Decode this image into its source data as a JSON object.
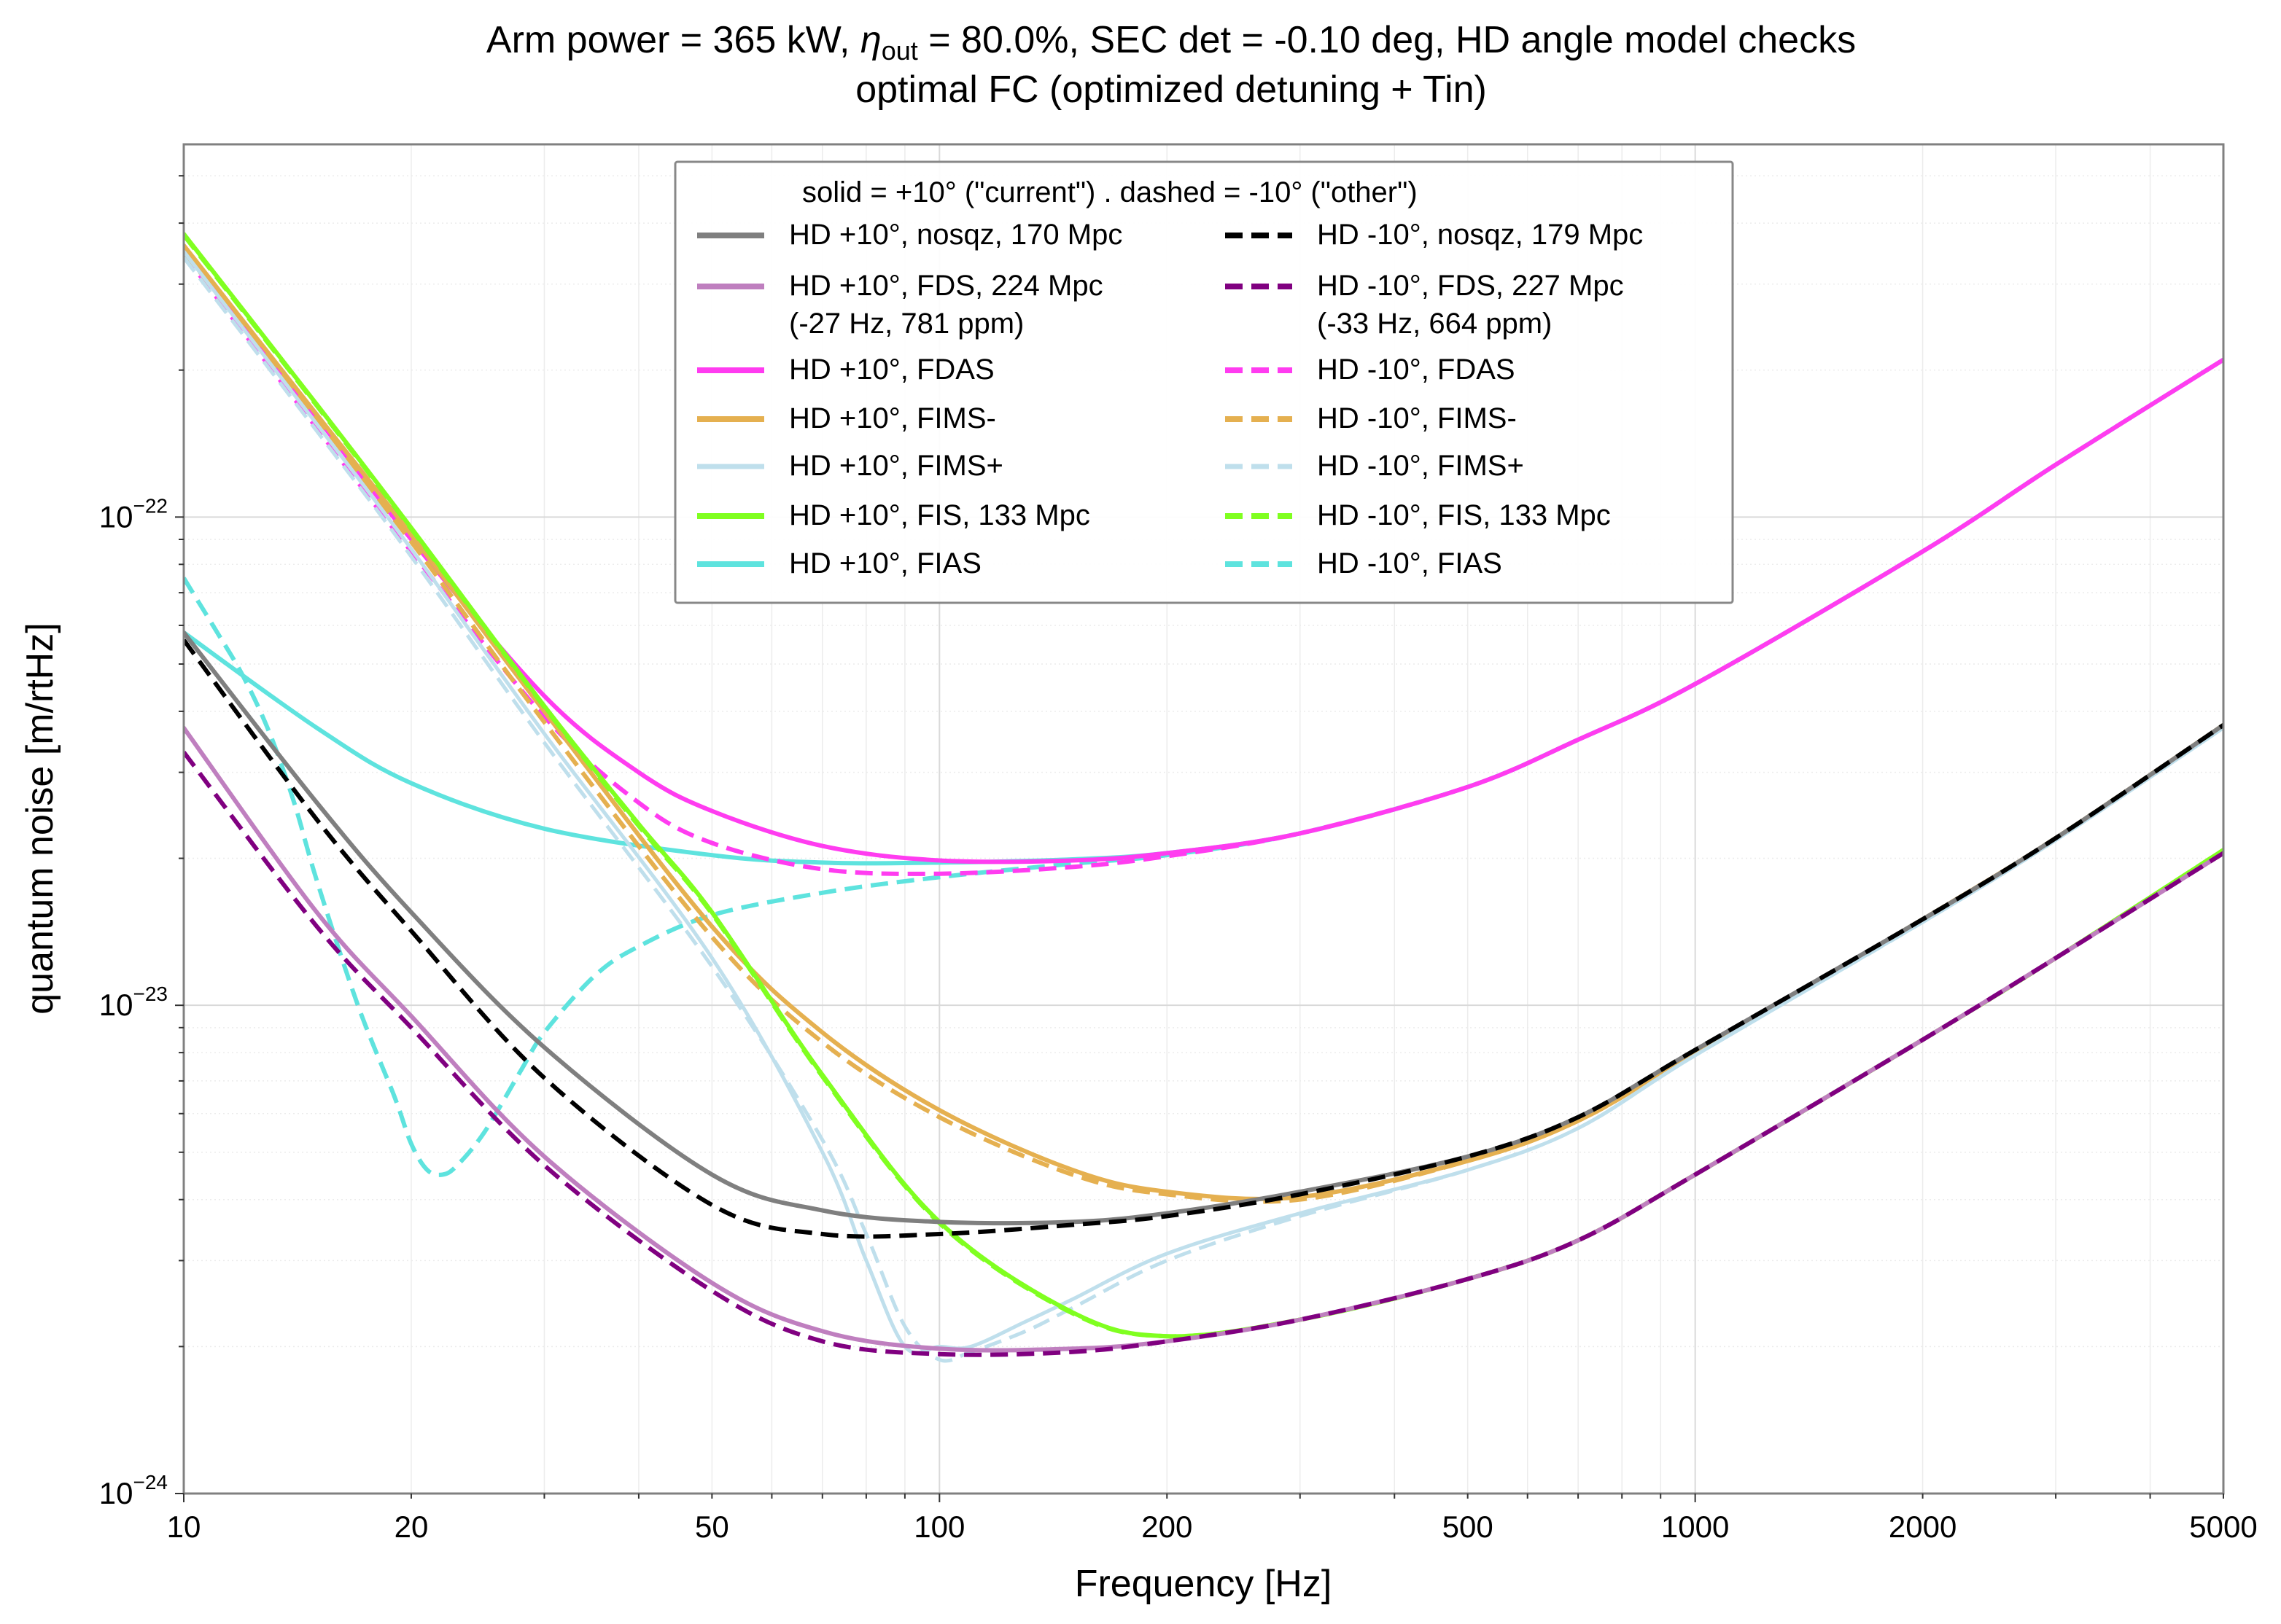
{
  "chart_data": {
    "type": "line",
    "title_line1_a": "Arm power = 365 kW, ",
    "title_eta": "η",
    "title_eta_sub": "out",
    "title_line1_b": " = 80.0%, SEC det = -0.10 deg, HD angle model checks",
    "title_line2": "optimal FC (optimized detuning + Tin)",
    "xlabel": "Frequency [Hz]",
    "ylabel": "quantum noise [m/rtHz]",
    "xscale": "log",
    "yscale": "log",
    "xlim": [
      10,
      5000
    ],
    "ylim": [
      1e-24,
      5.8e-22
    ],
    "grid": true,
    "x_ticks": [
      {
        "v": 10,
        "label": "10"
      },
      {
        "v": 20,
        "label": "20"
      },
      {
        "v": 50,
        "label": "50"
      },
      {
        "v": 100,
        "label": "100"
      },
      {
        "v": 200,
        "label": "200"
      },
      {
        "v": 500,
        "label": "500"
      },
      {
        "v": 1000,
        "label": "1000"
      },
      {
        "v": 2000,
        "label": "2000"
      },
      {
        "v": 5000,
        "label": "5000"
      }
    ],
    "y_ticks": [
      {
        "v": 1e-22,
        "base": "10",
        "exp": "−22"
      },
      {
        "v": 1e-23,
        "base": "10",
        "exp": "−23"
      },
      {
        "v": 1e-24,
        "base": "10",
        "exp": "−24"
      }
    ],
    "legend": {
      "placement": "upper-center",
      "header": "solid = +10° (\"current\") . dashed = -10° (\"other\")",
      "columns": 2
    },
    "series": [
      {
        "name": "HD +10°, nosqz, 170 Mpc",
        "color": "#7f7f7f",
        "dash": false,
        "width": 6,
        "x": [
          10,
          15,
          20,
          30,
          50,
          70,
          100,
          150,
          200,
          300,
          500,
          700,
          1000,
          2000,
          3000,
          5000
        ],
        "y": [
          5.8e-23,
          2.6e-23,
          1.55e-23,
          8.2e-24,
          4.5e-24,
          3.8e-24,
          3.6e-24,
          3.6e-24,
          3.75e-24,
          4.15e-24,
          4.9e-24,
          5.9e-24,
          8.1e-24,
          1.5e-23,
          2.2e-23,
          3.75e-23
        ]
      },
      {
        "name": "HD -10°, nosqz, 179 Mpc",
        "color": "#000000",
        "dash": true,
        "width": 6,
        "x": [
          10,
          15,
          20,
          30,
          50,
          70,
          100,
          150,
          200,
          300,
          500,
          700,
          1000,
          2000,
          3000,
          5000
        ],
        "y": [
          5.6e-23,
          2.4e-23,
          1.42e-23,
          7.1e-24,
          3.9e-24,
          3.4e-24,
          3.4e-24,
          3.55e-24,
          3.7e-24,
          4.1e-24,
          4.9e-24,
          5.9e-24,
          8.1e-24,
          1.5e-23,
          2.2e-23,
          3.75e-23
        ]
      },
      {
        "name": "HD +10°, FDS, 224 Mpc",
        "name2": "(-27 Hz, 781 ppm)",
        "color": "#bf7fbf",
        "dash": false,
        "width": 6,
        "x": [
          10,
          15,
          20,
          30,
          50,
          70,
          100,
          150,
          200,
          300,
          500,
          700,
          1000,
          2000,
          3000,
          5000
        ],
        "y": [
          3.7e-23,
          1.55e-23,
          9.5e-24,
          4.9e-24,
          2.7e-24,
          2.15e-24,
          1.98e-24,
          1.98e-24,
          2.05e-24,
          2.27e-24,
          2.75e-24,
          3.3e-24,
          4.5e-24,
          8.5e-24,
          1.25e-23,
          2.05e-23
        ]
      },
      {
        "name": "HD -10°, FDS, 227 Mpc",
        "name2": "(-33 Hz, 664 ppm)",
        "color": "#800080",
        "dash": true,
        "width": 6,
        "x": [
          10,
          15,
          20,
          30,
          50,
          70,
          100,
          150,
          200,
          300,
          500,
          700,
          1000,
          2000,
          3000,
          5000
        ],
        "y": [
          3.3e-23,
          1.45e-23,
          9e-24,
          4.7e-24,
          2.6e-24,
          2.05e-24,
          1.93e-24,
          1.95e-24,
          2.05e-24,
          2.27e-24,
          2.75e-24,
          3.3e-24,
          4.5e-24,
          8.5e-24,
          1.25e-23,
          2.05e-23
        ]
      },
      {
        "name": "HD +10°, FDAS",
        "color": "#ff3cf0",
        "dash": false,
        "width": 6,
        "x": [
          10,
          15,
          20,
          30,
          40,
          50,
          70,
          100,
          150,
          200,
          300,
          500,
          700,
          1000,
          2000,
          3000,
          5000
        ],
        "y": [
          3.55e-22,
          1.6e-22,
          9e-23,
          4.3e-23,
          3e-23,
          2.5e-23,
          2.12e-23,
          1.98e-23,
          1.98e-23,
          2.05e-23,
          2.25e-23,
          2.8e-23,
          3.5e-23,
          4.55e-23,
          8.5e-23,
          1.28e-22,
          2.1e-22
        ]
      },
      {
        "name": "HD -10°, FDAS",
        "color": "#ff3cf0",
        "dash": true,
        "width": 6,
        "x": [
          10,
          15,
          20,
          30,
          40,
          50,
          70,
          100,
          150,
          200,
          300,
          500,
          700,
          1000,
          2000,
          3000,
          5000
        ],
        "y": [
          3.45e-22,
          1.52e-22,
          8.5e-23,
          3.9e-23,
          2.6e-23,
          2.15e-23,
          1.9e-23,
          1.86e-23,
          1.92e-23,
          2.02e-23,
          2.25e-23,
          2.8e-23,
          3.5e-23,
          4.55e-23,
          8.5e-23,
          1.28e-22,
          2.1e-22
        ]
      },
      {
        "name": "HD +10°, FIMS-",
        "color": "#e5b050",
        "dash": false,
        "width": 6,
        "x": [
          10,
          15,
          20,
          30,
          50,
          70,
          100,
          150,
          200,
          300,
          500,
          700,
          1000,
          2000,
          3000,
          5000
        ],
        "y": [
          3.6e-22,
          1.62e-22,
          9.2e-23,
          4e-23,
          1.45e-23,
          8.8e-24,
          6.1e-24,
          4.6e-24,
          4.15e-24,
          4.05e-24,
          4.8e-24,
          5.8e-24,
          8e-24,
          1.5e-23,
          2.2e-23,
          3.75e-23
        ]
      },
      {
        "name": "HD -10°, FIMS-",
        "color": "#e5b050",
        "dash": true,
        "width": 6,
        "x": [
          10,
          15,
          20,
          30,
          50,
          70,
          100,
          150,
          200,
          300,
          500,
          700,
          1000,
          2000,
          3000,
          5000
        ],
        "y": [
          3.5e-22,
          1.57e-22,
          8.9e-23,
          3.8e-23,
          1.38e-23,
          8.4e-24,
          5.9e-24,
          4.5e-24,
          4.1e-24,
          4e-24,
          4.8e-24,
          5.8e-24,
          8e-24,
          1.5e-23,
          2.2e-23,
          3.75e-23
        ]
      },
      {
        "name": "HD +10°, FIMS+",
        "color": "#bfdfec",
        "dash": false,
        "width": 5,
        "x": [
          10,
          15,
          20,
          30,
          50,
          70,
          80,
          90,
          100,
          110,
          130,
          150,
          200,
          300,
          500,
          700,
          1000,
          2000,
          3000,
          5000
        ],
        "y": [
          3.5e-22,
          1.55e-22,
          8.6e-23,
          3.6e-23,
          1.25e-23,
          5e-24,
          3e-24,
          2e-24,
          2e-24,
          2e-24,
          2.25e-24,
          2.5e-24,
          3.1e-24,
          3.75e-24,
          4.6e-24,
          5.6e-24,
          7.9e-24,
          1.48e-23,
          2.18e-23,
          3.7e-23
        ]
      },
      {
        "name": "HD -10°, FIMS+",
        "color": "#bfdfec",
        "dash": true,
        "width": 5,
        "x": [
          10,
          15,
          20,
          30,
          50,
          70,
          80,
          90,
          100,
          110,
          130,
          150,
          200,
          300,
          500,
          700,
          1000,
          2000,
          3000,
          5000
        ],
        "y": [
          3.4e-22,
          1.5e-22,
          8.3e-23,
          3.45e-23,
          1.2e-23,
          5.3e-24,
          3.4e-24,
          2.2e-24,
          1.88e-24,
          1.95e-24,
          2.15e-24,
          2.4e-24,
          3e-24,
          3.7e-24,
          4.6e-24,
          5.6e-24,
          7.9e-24,
          1.48e-23,
          2.18e-23,
          3.7e-23
        ]
      },
      {
        "name": "HD +10°, FIS, 133 Mpc",
        "color": "#80ff20",
        "dash": false,
        "width": 6,
        "x": [
          10,
          15,
          20,
          30,
          40,
          50,
          70,
          100,
          150,
          200,
          300,
          500,
          700,
          1000,
          2000,
          3000,
          5000
        ],
        "y": [
          3.8e-22,
          1.7e-22,
          9.5e-23,
          4.1e-23,
          2.35e-23,
          1.55e-23,
          7.2e-24,
          3.6e-24,
          2.35e-24,
          2.1e-24,
          2.27e-24,
          2.75e-24,
          3.3e-24,
          4.5e-24,
          8.5e-24,
          1.25e-23,
          2.08e-23
        ]
      },
      {
        "name": "HD -10°, FIS, 133 Mpc",
        "color": "#80ff20",
        "dash": true,
        "width": 6,
        "x": [
          10,
          15,
          20,
          30,
          40,
          50,
          70,
          100,
          150,
          200,
          300,
          500,
          700,
          1000,
          2000,
          3000,
          5000
        ],
        "y": [
          3.78e-22,
          1.69e-22,
          9.45e-23,
          4.08e-23,
          2.33e-23,
          1.54e-23,
          7.15e-24,
          3.58e-24,
          2.34e-24,
          2.1e-24,
          2.27e-24,
          2.75e-24,
          3.3e-24,
          4.5e-24,
          8.5e-24,
          1.25e-23,
          2.08e-23
        ]
      },
      {
        "name": "HD +10°, FIAS",
        "color": "#5ee3de",
        "dash": false,
        "width": 6,
        "x": [
          10,
          15,
          20,
          30,
          50,
          70,
          100,
          150,
          200,
          300,
          500,
          700,
          1000,
          2000,
          3000,
          5000
        ],
        "y": [
          5.8e-23,
          3.7e-23,
          2.85e-23,
          2.3e-23,
          2.03e-23,
          1.96e-23,
          1.96e-23,
          1.99e-23,
          2.05e-23,
          2.25e-23,
          2.8e-23,
          3.5e-23,
          4.55e-23,
          8.5e-23,
          1.28e-22,
          2.1e-22
        ]
      },
      {
        "name": "HD -10°, FIAS",
        "color": "#5ee3de",
        "dash": true,
        "width": 6,
        "x": [
          10,
          11,
          12,
          13,
          14,
          15,
          17,
          19,
          20,
          21,
          22,
          23,
          25,
          28,
          30,
          35,
          40,
          50,
          70,
          100,
          150,
          200,
          300,
          500,
          700,
          1000,
          2000,
          3000,
          5000
        ],
        "y": [
          7.5e-23,
          5.9e-23,
          4.7e-23,
          3.6e-23,
          2.6e-23,
          1.8e-23,
          1e-23,
          6.5e-24,
          5.2e-24,
          4.6e-24,
          4.5e-24,
          4.7e-24,
          5.5e-24,
          7.4e-24,
          8.8e-24,
          1.15e-23,
          1.32e-23,
          1.53e-23,
          1.7e-23,
          1.83e-23,
          1.95e-23,
          2.03e-23,
          2.25e-23,
          2.8e-23,
          3.5e-23,
          4.55e-23,
          8.5e-23,
          1.28e-22,
          2.1e-22
        ]
      }
    ]
  }
}
